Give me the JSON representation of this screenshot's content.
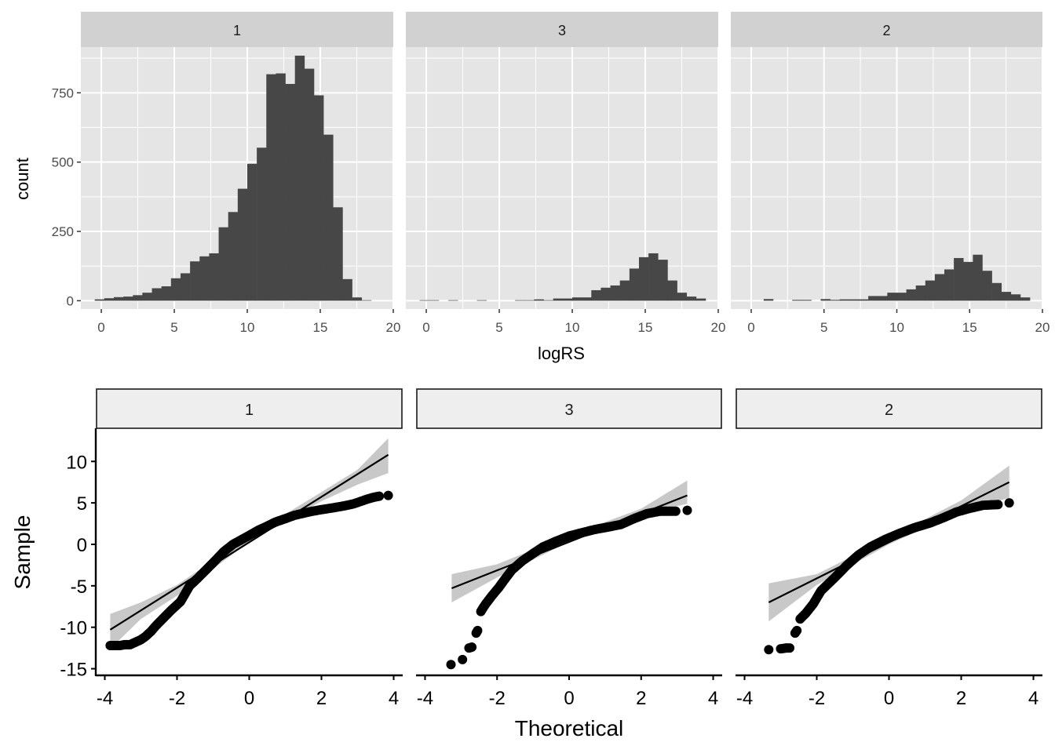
{
  "chart_data": [
    {
      "type": "bar",
      "subtype": "histogram",
      "xlabel": "logRS",
      "ylabel": "count",
      "xlim": [
        -1.4,
        20
      ],
      "ylim": [
        -30,
        915
      ],
      "x_ticks": [
        "0",
        "5",
        "10",
        "15",
        "20"
      ],
      "x_tick_values": [
        0,
        5,
        10,
        15,
        20
      ],
      "y_ticks": [
        "0",
        "250",
        "500",
        "750"
      ],
      "y_tick_values": [
        0,
        250,
        500,
        750
      ],
      "grid": true,
      "bin_start": -0.45,
      "bin_width": 0.653,
      "colors": {
        "bar": "#474747",
        "panel": "#e5e5e5",
        "strip": "#d1d1d1",
        "grid": "#ffffff"
      },
      "panels": [
        {
          "strip": "1",
          "counts": [
            5,
            9,
            13,
            15,
            20,
            29,
            45,
            52,
            81,
            99,
            142,
            160,
            171,
            265,
            320,
            404,
            494,
            552,
            817,
            820,
            782,
            884,
            837,
            741,
            599,
            337,
            78,
            12,
            2,
            0
          ]
        },
        {
          "strip": "3",
          "counts": [
            2,
            2,
            0,
            2,
            0,
            0,
            2,
            0,
            0,
            0,
            2,
            2,
            5,
            2,
            8,
            8,
            12,
            12,
            38,
            47,
            55,
            73,
            116,
            157,
            171,
            148,
            73,
            29,
            15,
            8
          ]
        },
        {
          "strip": "2",
          "counts": [
            0,
            0,
            6,
            0,
            0,
            3,
            3,
            0,
            6,
            3,
            5,
            5,
            5,
            17,
            17,
            29,
            29,
            41,
            55,
            73,
            96,
            113,
            154,
            140,
            166,
            108,
            64,
            32,
            23,
            12
          ]
        }
      ]
    },
    {
      "type": "scatter",
      "subtype": "qq",
      "xlabel": "Theoretical",
      "ylabel": "Sample",
      "xlim": [
        -4.25,
        4.25
      ],
      "ylim": [
        -15.8,
        14.0
      ],
      "x_ticks": [
        "-4",
        "-2",
        "0",
        "2",
        "4"
      ],
      "x_tick_values": [
        -4,
        -2,
        0,
        2,
        4
      ],
      "y_ticks": [
        "10",
        "5",
        "0",
        "-5",
        "-10",
        "-15"
      ],
      "y_tick_values": [
        10,
        5,
        0,
        -5,
        -10,
        -15
      ],
      "grid": false,
      "colors": {
        "points": "#000000",
        "line": "#000000",
        "band": "#c8c8c8",
        "strip": "#eeeeee"
      },
      "panels": [
        {
          "strip": "1",
          "points": [
            [
              -3.85,
              -12.2
            ],
            [
              -3.72,
              -12.2
            ],
            [
              -3.58,
              -12.2
            ],
            [
              -3.45,
              -12.1
            ],
            [
              -3.3,
              -12.1
            ],
            [
              -3.15,
              -11.8
            ],
            [
              -3.0,
              -11.5
            ],
            [
              -2.87,
              -11.1
            ],
            [
              -2.72,
              -10.5
            ],
            [
              -2.58,
              -9.8
            ],
            [
              -2.4,
              -9.0
            ],
            [
              -2.15,
              -7.9
            ],
            [
              -1.9,
              -6.9
            ],
            [
              -1.65,
              -5.0
            ],
            [
              -1.43,
              -4.1
            ],
            [
              -1.2,
              -3.1
            ],
            [
              -0.95,
              -2.0
            ],
            [
              -0.71,
              -0.9
            ],
            [
              -0.45,
              0.0
            ],
            [
              -0.2,
              0.6
            ],
            [
              0.01,
              1.1
            ],
            [
              0.25,
              1.7
            ],
            [
              0.5,
              2.2
            ],
            [
              0.73,
              2.7
            ],
            [
              1.0,
              3.1
            ],
            [
              1.25,
              3.5
            ],
            [
              1.45,
              3.7
            ],
            [
              1.7,
              3.95
            ],
            [
              1.95,
              4.15
            ],
            [
              2.17,
              4.3
            ],
            [
              2.45,
              4.5
            ],
            [
              2.7,
              4.7
            ],
            [
              2.9,
              4.9
            ],
            [
              3.1,
              5.2
            ],
            [
              3.3,
              5.5
            ],
            [
              3.47,
              5.7
            ],
            [
              3.6,
              5.8
            ],
            [
              3.85,
              5.9
            ]
          ],
          "line": [
            [
              -3.85,
              -10.3
            ],
            [
              3.85,
              10.8
            ]
          ],
          "band_lower": [
            [
              -3.85,
              -12.6
            ],
            [
              -3.0,
              -9.0
            ],
            [
              -2.0,
              -6.2
            ],
            [
              0.0,
              0.3
            ],
            [
              2.0,
              5.2
            ],
            [
              3.0,
              7.2
            ],
            [
              3.85,
              8.6
            ]
          ],
          "band_upper": [
            [
              -3.85,
              -8.4
            ],
            [
              -3.0,
              -7.0
            ],
            [
              -2.0,
              -4.9
            ],
            [
              0.0,
              1.0
            ],
            [
              2.0,
              6.3
            ],
            [
              3.0,
              9.0
            ],
            [
              3.85,
              12.8
            ]
          ]
        },
        {
          "strip": "3",
          "points": [
            [
              -3.28,
              -14.5
            ],
            [
              -2.96,
              -13.9
            ],
            [
              -2.78,
              -12.5
            ],
            [
              -2.7,
              -12.4
            ],
            [
              -2.58,
              -10.7
            ],
            [
              -2.54,
              -10.4
            ],
            [
              -2.45,
              -8.1
            ],
            [
              -2.38,
              -7.6
            ],
            [
              -2.3,
              -7.1
            ],
            [
              -2.16,
              -6.3
            ],
            [
              -1.95,
              -5.2
            ],
            [
              -1.8,
              -4.3
            ],
            [
              -1.59,
              -3.1
            ],
            [
              -1.3,
              -2.0
            ],
            [
              -1.0,
              -1.1
            ],
            [
              -0.72,
              -0.3
            ],
            [
              -0.35,
              0.4
            ],
            [
              0.0,
              1.0
            ],
            [
              0.35,
              1.4
            ],
            [
              0.72,
              1.8
            ],
            [
              1.1,
              2.1
            ],
            [
              1.44,
              2.4
            ],
            [
              1.8,
              3.1
            ],
            [
              2.16,
              3.7
            ],
            [
              2.53,
              4.0
            ],
            [
              2.75,
              4.0
            ],
            [
              2.96,
              4.0
            ],
            [
              3.28,
              4.1
            ]
          ],
          "line": [
            [
              -3.26,
              -5.3
            ],
            [
              3.28,
              5.9
            ]
          ],
          "band_lower": [
            [
              -3.26,
              -7.0
            ],
            [
              -2.0,
              -4.0
            ],
            [
              0.0,
              0.3
            ],
            [
              2.0,
              3.6
            ],
            [
              3.28,
              4.9
            ]
          ],
          "band_upper": [
            [
              -3.26,
              -3.6
            ],
            [
              -2.0,
              -2.4
            ],
            [
              0.0,
              1.1
            ],
            [
              2.0,
              4.3
            ],
            [
              3.28,
              7.7
            ]
          ]
        },
        {
          "strip": "2",
          "points": [
            [
              -3.33,
              -12.7
            ],
            [
              -3.0,
              -12.6
            ],
            [
              -2.85,
              -12.5
            ],
            [
              -2.75,
              -12.5
            ],
            [
              -2.6,
              -10.7
            ],
            [
              -2.55,
              -10.4
            ],
            [
              -2.46,
              -9.0
            ],
            [
              -2.3,
              -8.3
            ],
            [
              -2.1,
              -7.2
            ],
            [
              -1.88,
              -5.6
            ],
            [
              -1.5,
              -4.0
            ],
            [
              -1.16,
              -2.5
            ],
            [
              -0.85,
              -1.3
            ],
            [
              -0.51,
              -0.3
            ],
            [
              -0.1,
              0.6
            ],
            [
              0.28,
              1.3
            ],
            [
              0.7,
              2.0
            ],
            [
              1.15,
              2.6
            ],
            [
              1.5,
              3.2
            ],
            [
              1.87,
              3.9
            ],
            [
              2.2,
              4.3
            ],
            [
              2.59,
              4.7
            ],
            [
              2.8,
              4.75
            ],
            [
              3.02,
              4.8
            ],
            [
              3.33,
              5.0
            ]
          ],
          "line": [
            [
              -3.33,
              -7.0
            ],
            [
              3.33,
              7.5
            ]
          ],
          "band_lower": [
            [
              -3.33,
              -9.3
            ],
            [
              -2.0,
              -4.9
            ],
            [
              0.0,
              0.0
            ],
            [
              2.0,
              4.0
            ],
            [
              3.33,
              5.6
            ]
          ],
          "band_upper": [
            [
              -3.33,
              -4.7
            ],
            [
              -2.0,
              -3.6
            ],
            [
              0.0,
              0.8
            ],
            [
              2.0,
              5.3
            ],
            [
              3.33,
              9.5
            ]
          ]
        }
      ]
    }
  ]
}
